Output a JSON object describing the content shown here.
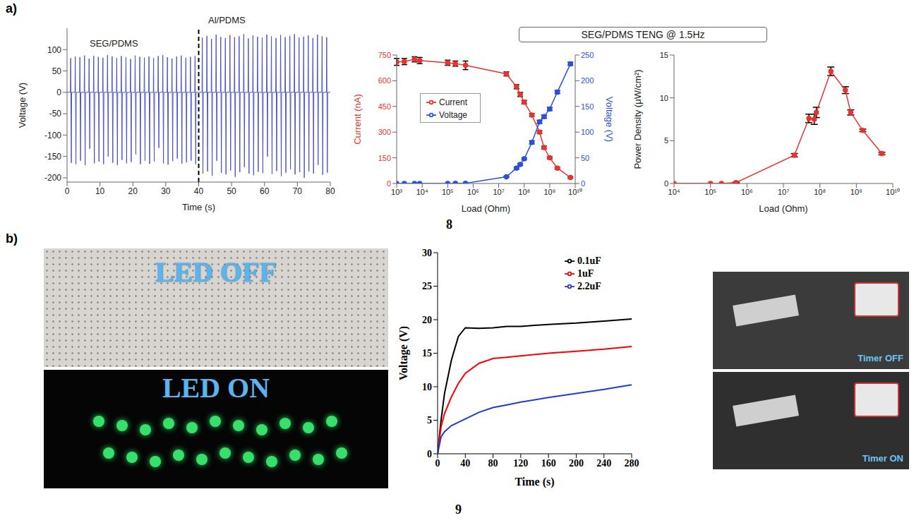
{
  "chart_data": [
    {
      "type": "line",
      "xlabel": "Time (s)",
      "ylabel": "Voltage (V)",
      "color": "#4b53c8",
      "xlim": [
        0,
        80
      ],
      "ylim": [
        -210,
        150
      ],
      "xticks": [
        0,
        10,
        20,
        30,
        40,
        50,
        60,
        70,
        80
      ],
      "yticks": [
        -200,
        -150,
        -100,
        -50,
        0,
        50,
        100
      ],
      "annotations": [
        {
          "text": "SEG/PDMS"
        },
        {
          "text": "Al/PDMS"
        }
      ],
      "reference_lines": [
        {
          "x": 40,
          "line_style": "dashed",
          "color": "#000000"
        }
      ],
      "x": [
        0,
        1.0,
        1.1,
        1.3,
        1.4,
        2.4,
        2.5,
        2.7,
        2.8,
        3.8,
        3.9,
        4.1,
        4.2,
        5.2,
        5.3,
        5.5,
        5.6,
        6.6,
        6.7,
        6.9,
        7.0,
        8.0,
        8.1,
        8.3,
        8.4,
        9.4,
        9.5,
        9.7,
        9.8,
        10.8,
        10.9,
        11.1,
        11.2,
        12.2,
        12.3,
        12.5,
        12.6,
        13.6,
        13.7,
        13.9,
        14.0,
        15.0,
        15.1,
        15.3,
        15.4,
        16.4,
        16.5,
        16.7,
        16.8,
        17.8,
        17.9,
        18.1,
        18.2,
        19.2,
        19.3,
        19.5,
        19.6,
        20.6,
        20.7,
        20.9,
        21.0,
        22.0,
        22.1,
        22.3,
        22.4,
        23.4,
        23.5,
        23.7,
        23.8,
        24.8,
        24.9,
        25.1,
        25.2,
        26.2,
        26.3,
        26.5,
        26.6,
        27.6,
        27.7,
        27.9,
        28.0,
        29.0,
        29.1,
        29.3,
        29.4,
        30.4,
        30.5,
        30.7,
        30.8,
        31.8,
        31.9,
        32.1,
        32.2,
        33.2,
        33.3,
        33.5,
        33.6,
        34.6,
        34.7,
        34.9,
        35.0,
        36.0,
        36.1,
        36.3,
        36.4,
        37.4,
        37.5,
        37.7,
        37.8,
        38.8,
        38.9,
        39.1,
        39.2,
        41.0,
        41.1,
        41.3,
        41.4,
        42.4,
        42.5,
        42.7,
        42.8,
        43.8,
        43.9,
        44.1,
        44.2,
        45.2,
        45.3,
        45.5,
        45.6,
        46.6,
        46.7,
        46.9,
        47.0,
        48.0,
        48.1,
        48.3,
        48.4,
        49.4,
        49.5,
        49.7,
        49.8,
        50.8,
        50.9,
        51.1,
        51.2,
        52.2,
        52.3,
        52.5,
        52.6,
        53.6,
        53.7,
        53.9,
        54.0,
        55.0,
        55.1,
        55.3,
        55.4,
        56.4,
        56.5,
        56.7,
        56.8,
        57.8,
        57.9,
        58.1,
        58.2,
        59.2,
        59.3,
        59.5,
        59.6,
        60.6,
        60.7,
        60.9,
        61.0,
        62.0,
        62.1,
        62.3,
        62.4,
        63.4,
        63.5,
        63.7,
        63.8,
        64.8,
        64.9,
        65.1,
        65.2,
        66.2,
        66.3,
        66.5,
        66.6,
        67.6,
        67.7,
        67.9,
        68.0,
        69.0,
        69.1,
        69.3,
        69.4,
        70.4,
        70.5,
        70.7,
        70.8,
        71.8,
        71.9,
        72.1,
        72.2,
        73.2,
        73.3,
        73.5,
        73.6,
        74.6,
        74.7,
        74.9,
        75.0,
        76.0,
        76.1,
        76.3,
        76.4,
        77.4,
        77.5,
        77.7,
        77.8,
        78.8,
        78.9,
        79.1,
        79.2,
        80
      ],
      "values": [
        0,
        0,
        80,
        -165,
        0,
        0,
        84,
        -168,
        0,
        0,
        82,
        -160,
        0,
        0,
        86,
        -170,
        0,
        0,
        79,
        -132,
        0,
        0,
        85,
        -166,
        0,
        0,
        83,
        -162,
        0,
        0,
        81,
        -168,
        0,
        0,
        87,
        -150,
        0,
        0,
        84,
        -165,
        0,
        0,
        80,
        -170,
        0,
        0,
        85,
        -158,
        0,
        0,
        82,
        -166,
        0,
        0,
        78,
        -163,
        0,
        0,
        86,
        -145,
        0,
        0,
        83,
        -168,
        0,
        0,
        81,
        -160,
        0,
        0,
        84,
        -167,
        0,
        0,
        80,
        -162,
        0,
        0,
        85,
        -130,
        0,
        0,
        87,
        -166,
        0,
        0,
        82,
        -169,
        0,
        0,
        79,
        -161,
        0,
        0,
        84,
        -155,
        0,
        0,
        86,
        -167,
        0,
        0,
        81,
        -164,
        0,
        0,
        83,
        -160,
        0,
        0,
        85,
        -168,
        0,
        0,
        128,
        -190,
        0,
        0,
        132,
        -185,
        0,
        0,
        125,
        -195,
        0,
        0,
        135,
        -160,
        0,
        0,
        130,
        -188,
        0,
        0,
        127,
        -192,
        0,
        0,
        134,
        -183,
        0,
        0,
        129,
        -198,
        0,
        0,
        131,
        -187,
        0,
        0,
        136,
        -175,
        0,
        0,
        126,
        -190,
        0,
        0,
        133,
        -194,
        0,
        0,
        130,
        -186,
        0,
        0,
        128,
        -189,
        0,
        0,
        135,
        -150,
        0,
        0,
        131,
        -191,
        0,
        0,
        127,
        -184,
        0,
        0,
        134,
        -196,
        0,
        0,
        129,
        -188,
        0,
        0,
        132,
        -180,
        0,
        0,
        136,
        -192,
        0,
        0,
        128,
        -187,
        0,
        0,
        130,
        -200,
        0,
        0,
        133,
        -185,
        0,
        0,
        127,
        -190,
        0,
        0,
        135,
        -170,
        0,
        0,
        131,
        -193,
        0,
        0,
        129,
        -188,
        0,
        0
      ]
    },
    {
      "type": "line",
      "log": "x",
      "xlabel": "Load (Ohm)",
      "ylabel": "Current (nA)",
      "y2label": "Voltage (V)",
      "legend": "center left",
      "xlim": [
        1000,
        10000000000
      ],
      "xticks": [
        {
          "value": 1000,
          "label": "10³"
        },
        {
          "value": 10000,
          "label": "10⁴"
        },
        {
          "value": 100000,
          "label": "10⁵"
        },
        {
          "value": 1000000,
          "label": "10⁶"
        },
        {
          "value": 10000000,
          "label": "10⁷"
        },
        {
          "value": 100000000,
          "label": "10⁸"
        },
        {
          "value": 1000000000,
          "label": "10⁹"
        },
        {
          "value": 10000000000,
          "label": "10¹⁰"
        }
      ],
      "ylim": [
        0,
        750
      ],
      "yticks": [
        0,
        150,
        300,
        450,
        600,
        750
      ],
      "y2lim": [
        0,
        250
      ],
      "y2ticks": [
        0,
        50,
        100,
        150,
        200,
        250
      ],
      "x": [
        1000,
        2000,
        5000,
        8000,
        100000,
        200000,
        500000,
        20000000,
        50000000,
        70000000,
        100000000,
        200000000,
        400000000,
        600000000,
        1000000000,
        2000000000,
        6500000000
      ],
      "series": [
        {
          "name": "Current",
          "color": "#e8332f",
          "marker": "circle",
          "values": [
            710,
            712,
            725,
            718,
            705,
            700,
            690,
            640,
            565,
            520,
            475,
            400,
            300,
            210,
            150,
            90,
            35
          ],
          "errors": [
            20,
            18,
            15,
            18,
            15,
            15,
            25,
            12,
            12,
            12,
            10,
            8,
            8,
            8,
            6,
            6,
            5
          ]
        },
        {
          "name": "Voltage",
          "color": "#2b50e0",
          "marker": "circle",
          "axis": "y2",
          "values": [
            0,
            0,
            0,
            0,
            0.1,
            0.2,
            0.5,
            13,
            30,
            37,
            48,
            80,
            120,
            130,
            145,
            178,
            233
          ],
          "errors": [
            0,
            0,
            0,
            0,
            0,
            0,
            0,
            1,
            2,
            2,
            2,
            3,
            3,
            3,
            3,
            3,
            3
          ]
        }
      ]
    },
    {
      "type": "line",
      "log": "x",
      "xlabel": "Load (Ohm)",
      "ylabel": "Power Density (μW/cm²)",
      "color": "#e8332f",
      "marker": "circle",
      "xlim": [
        10000,
        10000000000
      ],
      "xticks": [
        {
          "value": 10000,
          "label": "10⁴"
        },
        {
          "value": 100000,
          "label": "10⁵"
        },
        {
          "value": 1000000,
          "label": "10⁶"
        },
        {
          "value": 10000000,
          "label": "10⁷"
        },
        {
          "value": 100000000,
          "label": "10⁸"
        },
        {
          "value": 1000000000,
          "label": "10⁹"
        },
        {
          "value": 10000000000,
          "label": "10¹⁰"
        }
      ],
      "ylim": [
        0,
        15
      ],
      "yticks": [
        0,
        5,
        10,
        15
      ],
      "x": [
        10000,
        100000,
        200000,
        500000,
        20000000,
        50000000,
        70000000,
        80000000,
        200000000,
        500000000,
        700000000,
        1500000000,
        5000000000
      ],
      "values": [
        0,
        0,
        0,
        0.1,
        3.3,
        7.6,
        7.5,
        8.3,
        13.1,
        10.9,
        8.3,
        6.2,
        3.5
      ],
      "errors": [
        0,
        0,
        0,
        0.05,
        0.2,
        0.5,
        0.6,
        0.6,
        0.5,
        0.4,
        0.3,
        0.15,
        0.15
      ]
    },
    {
      "type": "line",
      "xlabel": "Time (s)",
      "ylabel": "Voltage (V)",
      "legend": "upper right",
      "xlim": [
        0,
        280
      ],
      "ylim": [
        0,
        30
      ],
      "xticks": [
        0,
        40,
        80,
        120,
        160,
        200,
        240,
        280
      ],
      "yticks": [
        0,
        5,
        10,
        15,
        20,
        25,
        30
      ],
      "x": [
        0,
        5,
        10,
        20,
        30,
        40,
        60,
        80,
        100,
        120,
        160,
        200,
        240,
        280
      ],
      "series": [
        {
          "name": "0.1uF",
          "color": "#000000",
          "values": [
            0,
            5,
            9,
            14,
            17.5,
            18.8,
            18.7,
            18.8,
            19,
            19,
            19.3,
            19.5,
            19.8,
            20.1
          ]
        },
        {
          "name": "1uF",
          "color": "#ff0000",
          "values": [
            0,
            4,
            6,
            8.5,
            10.5,
            12,
            13.5,
            14.2,
            14.4,
            14.6,
            15,
            15.3,
            15.6,
            16
          ]
        },
        {
          "name": "2.2uF",
          "color": "#1f3bd6",
          "values": [
            0,
            2.5,
            3.3,
            4.2,
            4.7,
            5.2,
            6.2,
            6.9,
            7.3,
            7.7,
            8.4,
            9,
            9.6,
            10.3
          ]
        }
      ]
    }
  ],
  "panel_labels": [
    "a)",
    "b)"
  ],
  "figure_numbers": [
    "8",
    "9"
  ],
  "header_box": "SEG/PDMS TENG @ 1.5Hz",
  "photos": [
    {
      "labels": [
        "LED OFF",
        "LED ON"
      ]
    },
    {
      "labels": [
        "Timer OFF",
        "Timer ON"
      ]
    }
  ]
}
